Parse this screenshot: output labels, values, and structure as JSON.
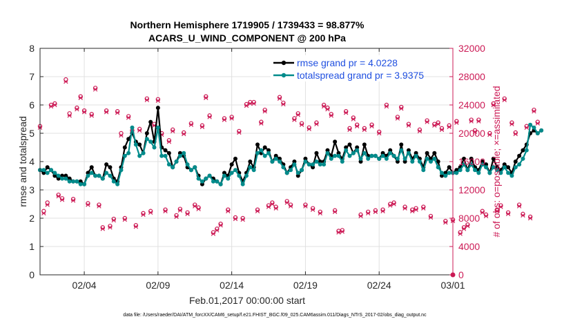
{
  "chart_data": {
    "type": "line",
    "title": "Northern Hemisphere 1719905 / 1739433 = 98.877%",
    "subtitle": "ACARS_U_WIND_COMPONENT @ 200 hPa",
    "xlabel": "Feb.01,2017 00:00:00 start",
    "ylabel": "rmse and totalspread",
    "y2label": "# of obs: o=possible; ×=assimilated",
    "footer": "data file: /Users/raeder/DAI/ATM_forcXX/CAM6_setup/f.e21.FHIST_BGC.f09_025.CAM6assim.011/Diags_NTrS_2017-02/obs_diag_output.nc",
    "xlim": [
      0,
      28
    ],
    "ylim": [
      0,
      8
    ],
    "y2lim": [
      0,
      32000
    ],
    "x_ticks": [
      3,
      8,
      13,
      18,
      23,
      28
    ],
    "x_tick_labels": [
      "02/04",
      "02/09",
      "02/14",
      "02/19",
      "02/24",
      "03/01"
    ],
    "y_ticks": [
      0,
      1,
      2,
      3,
      4,
      5,
      6,
      7,
      8
    ],
    "y_tick_labels": [
      "0",
      "1",
      "2",
      "3",
      "4",
      "5",
      "6",
      "7",
      "8"
    ],
    "y2_ticks": [
      0,
      4000,
      8000,
      12000,
      16000,
      20000,
      24000,
      28000,
      32000
    ],
    "y2_tick_labels": [
      "0",
      "4000",
      "8000",
      "12000",
      "16000",
      "20000",
      "24000",
      "28000",
      "32000"
    ],
    "grid": true,
    "legend_position": "top-right",
    "x_step": 0.25,
    "series": [
      {
        "name": "rmse grand pr = 4.0228",
        "color": "#000000",
        "marker": "circle",
        "values": [
          3.7,
          3.6,
          3.8,
          3.7,
          3.5,
          3.4,
          3.5,
          3.5,
          3.4,
          3.3,
          3.3,
          3.3,
          3.2,
          3.6,
          3.8,
          3.5,
          3.5,
          3.4,
          3.9,
          3.8,
          3.4,
          3.3,
          3.8,
          4.5,
          4.8,
          5.0,
          4.7,
          4.6,
          4.3,
          5.0,
          5.4,
          4.7,
          5.9,
          4.5,
          4.4,
          4.3,
          3.8,
          4.0,
          4.3,
          4.2,
          3.8,
          3.7,
          3.8,
          3.5,
          3.2,
          3.4,
          3.5,
          3.4,
          3.3,
          3.2,
          3.6,
          3.5,
          3.9,
          4.1,
          3.6,
          3.3,
          3.6,
          4.0,
          3.8,
          4.6,
          4.3,
          4.5,
          4.4,
          4.0,
          4.2,
          4.1,
          3.9,
          3.6,
          3.8,
          4.0,
          3.5,
          3.7,
          4.1,
          3.9,
          3.8,
          4.3,
          4.0,
          4.0,
          4.4,
          4.2,
          4.7,
          4.3,
          4.1,
          4.5,
          4.6,
          4.3,
          4.5,
          4.0,
          4.6,
          4.2,
          4.2,
          4.2,
          4.1,
          4.3,
          4.2,
          4.4,
          4.2,
          4.0,
          4.6,
          4.0,
          4.4,
          4.1,
          4.3,
          4.1,
          3.8,
          4.3,
          4.1,
          4.3,
          4.0,
          3.5,
          3.6,
          3.8,
          3.6,
          3.7,
          3.8,
          4.1,
          3.7,
          4.1,
          3.8,
          3.7,
          4.0,
          3.9,
          3.6,
          4.1,
          3.8,
          3.7,
          3.9,
          3.8,
          3.6,
          4.0,
          4.2,
          4.4,
          4.6,
          5.0,
          5.1,
          5.0,
          5.1
        ]
      },
      {
        "name": "totalspread grand pr = 3.9375",
        "color": "#008b8b",
        "marker": "circle",
        "values": [
          3.7,
          3.7,
          3.6,
          3.7,
          3.6,
          3.5,
          3.4,
          3.4,
          3.3,
          3.3,
          3.3,
          3.2,
          3.2,
          3.5,
          3.6,
          3.5,
          3.5,
          3.4,
          3.6,
          3.5,
          3.3,
          3.2,
          3.7,
          4.2,
          4.3,
          5.2,
          4.6,
          4.2,
          4.3,
          4.8,
          4.7,
          4.5,
          5.2,
          4.2,
          4.2,
          3.9,
          3.8,
          4.0,
          4.2,
          4.3,
          3.9,
          3.7,
          3.8,
          3.4,
          3.3,
          3.4,
          3.5,
          3.3,
          3.3,
          3.2,
          3.5,
          3.4,
          3.6,
          3.7,
          3.5,
          3.2,
          3.5,
          3.8,
          3.7,
          4.3,
          4.4,
          4.2,
          4.3,
          4.0,
          4.1,
          4.0,
          3.8,
          3.6,
          3.7,
          3.9,
          3.6,
          3.7,
          4.0,
          3.9,
          3.9,
          4.0,
          3.9,
          3.9,
          4.3,
          4.1,
          4.2,
          4.2,
          4.0,
          4.4,
          4.2,
          4.3,
          4.4,
          4.1,
          4.3,
          4.1,
          4.2,
          4.2,
          4.1,
          4.2,
          4.1,
          4.3,
          4.2,
          4.1,
          4.4,
          4.1,
          4.3,
          4.0,
          4.2,
          4.0,
          3.7,
          4.1,
          4.0,
          4.1,
          3.8,
          3.6,
          3.5,
          3.6,
          3.6,
          3.6,
          3.7,
          3.9,
          3.7,
          3.9,
          3.7,
          3.6,
          3.9,
          3.8,
          3.6,
          3.8,
          3.7,
          3.6,
          3.8,
          3.6,
          3.5,
          3.8,
          3.9,
          4.1,
          4.4,
          5.3,
          5.2,
          5.0,
          5.1
        ]
      },
      {
        "name": "# of obs possible",
        "color": "#cc1a55",
        "marker": "circle-open",
        "axis": "right",
        "values": [
          21000,
          9000,
          10200,
          24000,
          24200,
          11300,
          10800,
          27600,
          22800,
          10700,
          23600,
          25200,
          23200,
          10100,
          22700,
          26400,
          9900,
          6700,
          23200,
          6900,
          7900,
          23100,
          20000,
          8000,
          22400,
          20400,
          7000,
          20600,
          8700,
          24900,
          9000,
          21300,
          24800,
          20000,
          9200,
          19000,
          20500,
          8400,
          9300,
          20100,
          8800,
          21400,
          9900,
          9500,
          21100,
          25200,
          22500,
          6000,
          6500,
          7200,
          22100,
          9200,
          22300,
          8100,
          20300,
          8000,
          24100,
          24400,
          24400,
          9200,
          21600,
          23300,
          9800,
          10200,
          9600,
          25100,
          24300,
          10400,
          9900,
          22100,
          22800,
          21400,
          9900,
          20800,
          9400,
          21500,
          8900,
          24000,
          23600,
          22700,
          9100,
          6200,
          6300,
          23100,
          20700,
          22200,
          21200,
          8500,
          20700,
          8900,
          21200,
          9100,
          20200,
          9200,
          24000,
          10000,
          10200,
          22300,
          23700,
          9600,
          21300,
          9200,
          9400,
          20500,
          9600,
          21800,
          8300,
          21300,
          21500,
          20700,
          7600,
          21100,
          7800,
          21700,
          6000,
          6700,
          7100,
          21900,
          20400,
          21900,
          9000,
          8500,
          20000,
          24200,
          9200,
          9800,
          24900,
          8800,
          21500,
          20100,
          9900,
          8600,
          21000,
          8200,
          23300,
          21600
        ]
      },
      {
        "name": "# of obs assimilated",
        "color": "#cc1a55",
        "marker": "asterisk",
        "axis": "right",
        "values": [
          20800,
          8700,
          9900,
          23800,
          24000,
          11100,
          10600,
          27300,
          22500,
          10500,
          23400,
          25000,
          23000,
          9900,
          22500,
          26200,
          9700,
          6500,
          23000,
          6700,
          7700,
          22900,
          19700,
          7800,
          22200,
          20200,
          6800,
          20400,
          8500,
          24700,
          8800,
          21100,
          24600,
          19800,
          9000,
          18800,
          20300,
          8200,
          9100,
          19900,
          8600,
          21200,
          9700,
          9300,
          20900,
          25000,
          22300,
          5800,
          6300,
          7000,
          21900,
          9000,
          22100,
          7900,
          20100,
          7800,
          23900,
          24200,
          24200,
          9000,
          21400,
          23100,
          9600,
          10000,
          9400,
          24900,
          24100,
          10200,
          9700,
          21900,
          22600,
          21200,
          9700,
          20600,
          9200,
          21300,
          8700,
          23800,
          23400,
          22500,
          8900,
          6000,
          6100,
          22900,
          20500,
          22000,
          21000,
          8300,
          20500,
          8700,
          21000,
          8900,
          20000,
          9000,
          23800,
          9800,
          10000,
          22100,
          23500,
          9400,
          21100,
          9000,
          9200,
          20300,
          9400,
          21600,
          8100,
          21100,
          21300,
          20500,
          7400,
          20900,
          7600,
          21500,
          5800,
          6500,
          6900,
          21700,
          20200,
          21700,
          8800,
          8300,
          19800,
          24000,
          9000,
          9600,
          24700,
          8600,
          21300,
          19900,
          9700,
          8400,
          20800,
          8000,
          23100,
          21400
        ]
      }
    ]
  }
}
